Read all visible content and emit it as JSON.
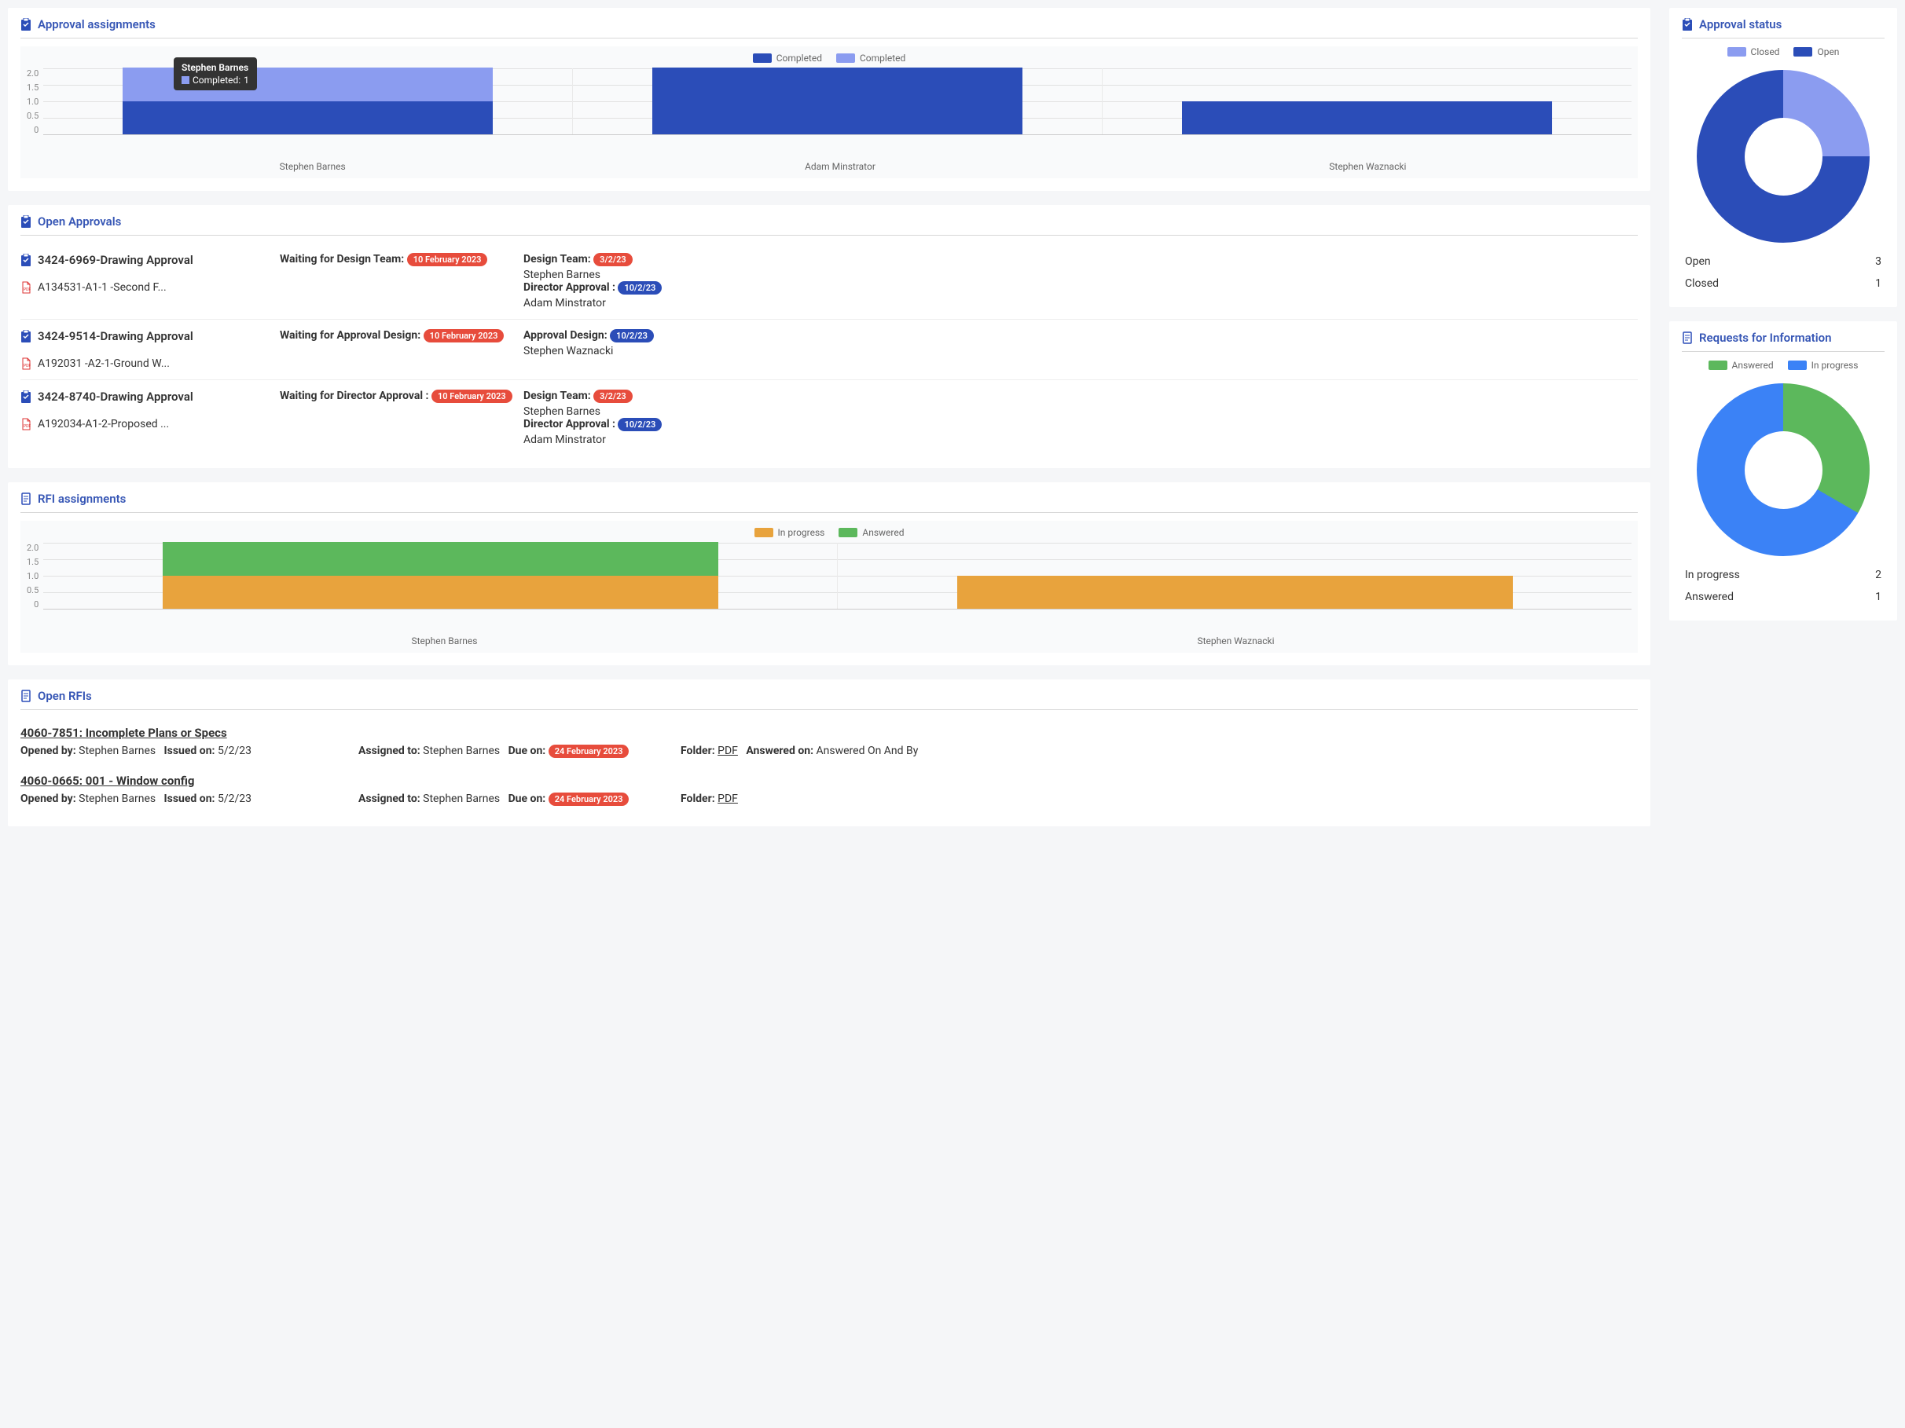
{
  "colors": {
    "primary_dark": "#2b4db8",
    "primary_light": "#8b9cf0",
    "orange": "#e8a33d",
    "green": "#5cb85c",
    "blue": "#3b82f6",
    "badge_red": "#e74c3c",
    "badge_blue": "#2b4db8"
  },
  "approval_assignments": {
    "title": "Approval assignments",
    "legend": [
      {
        "label": "Completed",
        "color": "#2b4db8"
      },
      {
        "label": "Completed",
        "color": "#8b9cf0"
      }
    ],
    "y_ticks": [
      "2.0",
      "1.5",
      "1.0",
      "0.5",
      "0"
    ],
    "y_max": 2.0,
    "categories": [
      "Stephen Barnes",
      "Adam Minstrator",
      "Stephen Waznacki"
    ],
    "series": [
      {
        "color": "#2b4db8",
        "values": [
          1,
          2,
          1
        ]
      },
      {
        "color": "#8b9cf0",
        "values": [
          1,
          0,
          0
        ]
      }
    ],
    "tooltip": {
      "title": "Stephen Barnes",
      "swatch": "#8b9cf0",
      "label": "Completed:",
      "value": "1"
    }
  },
  "open_approvals": {
    "title": "Open Approvals",
    "rows": [
      {
        "title": "3424-6969-Drawing Approval",
        "file": "A134531-A1-1 -Second F...",
        "waiting_label": "Waiting for Design Team:",
        "waiting_date": "10 February 2023",
        "waiting_color": "#e74c3c",
        "details": [
          {
            "label": "Design Team:",
            "badge": "3/2/23",
            "badge_color": "#e74c3c",
            "name": "Stephen Barnes"
          },
          {
            "label": "Director Approval :",
            "badge": "10/2/23",
            "badge_color": "#2b4db8",
            "name": "Adam Minstrator"
          }
        ]
      },
      {
        "title": "3424-9514-Drawing Approval",
        "file": "A192031 -A2-1-Ground W...",
        "waiting_label": "Waiting for Approval Design:",
        "waiting_date": "10 February 2023",
        "waiting_color": "#e74c3c",
        "details": [
          {
            "label": "Approval Design:",
            "badge": "10/2/23",
            "badge_color": "#2b4db8",
            "name": "Stephen Waznacki"
          }
        ]
      },
      {
        "title": "3424-8740-Drawing Approval",
        "file": "A192034-A1-2-Proposed ...",
        "waiting_label": "Waiting for Director Approval :",
        "waiting_date": "10 February 2023",
        "waiting_color": "#e74c3c",
        "details": [
          {
            "label": "Design Team:",
            "badge": "3/2/23",
            "badge_color": "#e74c3c",
            "name": "Stephen Barnes"
          },
          {
            "label": "Director Approval :",
            "badge": "10/2/23",
            "badge_color": "#2b4db8",
            "name": "Adam Minstrator"
          }
        ]
      }
    ]
  },
  "rfi_assignments": {
    "title": "RFI assignments",
    "legend": [
      {
        "label": "In progress",
        "color": "#e8a33d"
      },
      {
        "label": "Answered",
        "color": "#5cb85c"
      }
    ],
    "y_ticks": [
      "2.0",
      "1.5",
      "1.0",
      "0.5",
      "0"
    ],
    "y_max": 2.0,
    "categories": [
      "Stephen Barnes",
      "Stephen Waznacki"
    ],
    "series": [
      {
        "color": "#e8a33d",
        "values": [
          1,
          1
        ]
      },
      {
        "color": "#5cb85c",
        "values": [
          1,
          0
        ]
      }
    ]
  },
  "approval_status": {
    "title": "Approval status",
    "legend": [
      {
        "label": "Closed",
        "color": "#8b9cf0"
      },
      {
        "label": "Open",
        "color": "#2b4db8"
      }
    ],
    "slices": [
      {
        "color": "#8b9cf0",
        "start": 0,
        "end": 90
      },
      {
        "color": "#2b4db8",
        "start": 90,
        "end": 360
      }
    ],
    "stats": [
      {
        "label": "Open",
        "value": "3"
      },
      {
        "label": "Closed",
        "value": "1"
      }
    ]
  },
  "rfi_status": {
    "title": "Requests for Information",
    "legend": [
      {
        "label": "Answered",
        "color": "#5cb85c"
      },
      {
        "label": "In progress",
        "color": "#3b82f6"
      }
    ],
    "slices": [
      {
        "color": "#5cb85c",
        "start": 0,
        "end": 120
      },
      {
        "color": "#3b82f6",
        "start": 120,
        "end": 360
      }
    ],
    "stats": [
      {
        "label": "In progress",
        "value": "2"
      },
      {
        "label": "Answered",
        "value": "1"
      }
    ]
  },
  "open_rfis": {
    "title": "Open RFIs",
    "rows": [
      {
        "title": "4060-7851: Incomplete Plans or Specs",
        "opened_by": "Stephen Barnes",
        "issued_on": "5/2/23",
        "assigned_to": "Stephen Barnes",
        "due_on": "24 February 2023",
        "due_color": "#e74c3c",
        "folder": "PDF",
        "answered_on": "Answered On And By"
      },
      {
        "title": "4060-0665: 001 - Window config",
        "opened_by": "Stephen Barnes",
        "issued_on": "5/2/23",
        "assigned_to": "Stephen Barnes",
        "due_on": "24 February 2023",
        "due_color": "#e74c3c",
        "folder": "PDF",
        "answered_on": ""
      }
    ],
    "labels": {
      "opened_by": "Opened by:",
      "issued_on": "Issued on:",
      "assigned_to": "Assigned to:",
      "due_on": "Due on:",
      "folder": "Folder:",
      "answered_on": "Answered on:"
    }
  }
}
